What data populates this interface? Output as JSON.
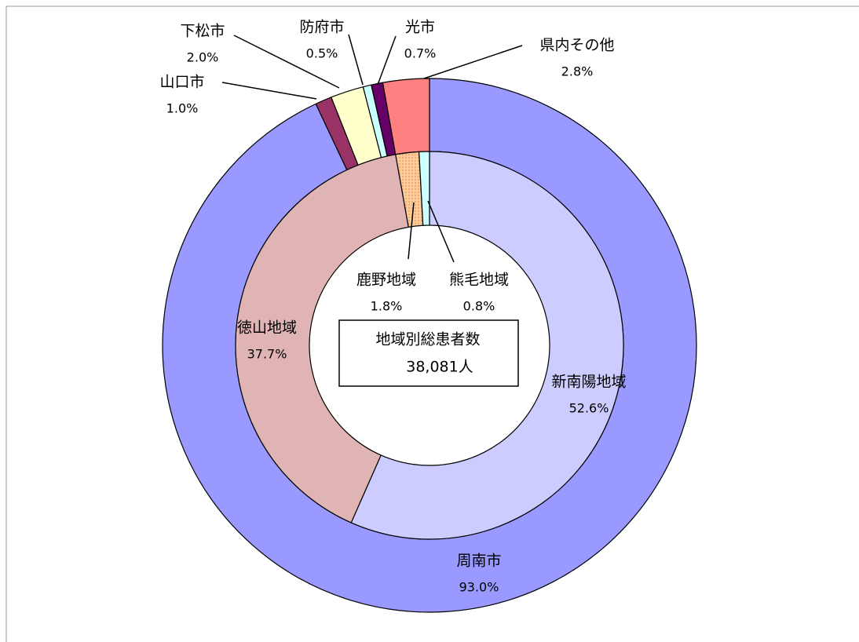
{
  "chart_data": {
    "type": "donut",
    "outer": {
      "categories": [
        "周南市",
        "山口市",
        "下松市",
        "防府市",
        "光市",
        "県内その他"
      ],
      "values": [
        93.0,
        1.0,
        2.0,
        0.5,
        0.7,
        2.8
      ],
      "value_labels": [
        "93.0%",
        "1.0%",
        "2.0%",
        "0.5%",
        "0.7%",
        "2.8%"
      ],
      "colors": [
        "#9999ff",
        "#993366",
        "#ffffcc",
        "#ccffff",
        "#660066",
        "#ff8080"
      ]
    },
    "inner": {
      "categories": [
        "新南陽地域",
        "徳山地域",
        "鹿野地域",
        "熊毛地域"
      ],
      "values": [
        52.6,
        37.7,
        1.8,
        0.8
      ],
      "value_labels": [
        "52.6%",
        "37.7%",
        "1.8%",
        "0.8%"
      ],
      "colors": [
        "#ccccff",
        "#e0b4b4",
        "#ffcc99",
        "#ccffff"
      ]
    },
    "annotation": [
      "地域別総患者数",
      "38,081人"
    ]
  }
}
